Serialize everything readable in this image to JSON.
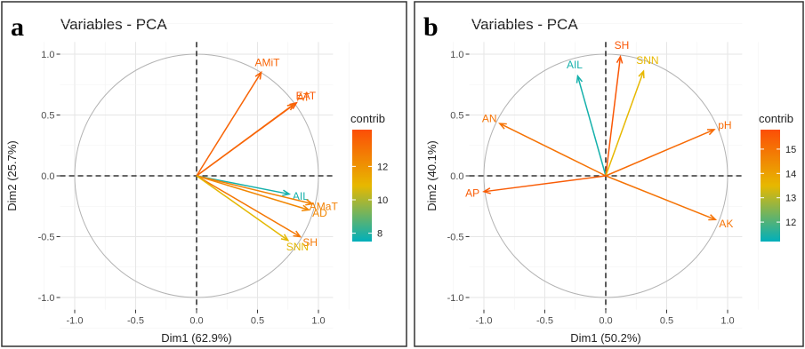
{
  "chart_data": [
    {
      "panel": "a",
      "type": "scatter",
      "title": "Variables - PCA",
      "xlabel": "Dim1 (62.9%)",
      "ylabel": "Dim2 (25.7%)",
      "xlim": [
        -1.0,
        1.0
      ],
      "ylim": [
        -1.0,
        1.0
      ],
      "xticks": [
        "-1.0",
        "-0.5",
        "0.0",
        "0.5",
        "1.0"
      ],
      "yticks": [
        "-1.0",
        "-0.5",
        "0.0",
        "0.5",
        "1.0"
      ],
      "legend": {
        "title": "contrib",
        "placement": "right",
        "ticks": [
          "8",
          "10",
          "12"
        ],
        "range": [
          7.5,
          14.2
        ],
        "colors": [
          "#00AFBB",
          "#E7B800",
          "#FC4E07"
        ]
      },
      "vectors": [
        {
          "name": "AMiT",
          "x": 0.53,
          "y": 0.85,
          "contrib": 13.5
        },
        {
          "name": "EAT",
          "x": 0.82,
          "y": 0.6,
          "contrib": 13.9
        },
        {
          "name": "AT",
          "x": 0.8,
          "y": 0.59,
          "contrib": 13.4
        },
        {
          "name": "AIL",
          "x": 0.76,
          "y": -0.15,
          "contrib": 7.8
        },
        {
          "name": "AMaT",
          "x": 0.95,
          "y": -0.23,
          "contrib": 12.6
        },
        {
          "name": "AD",
          "x": 0.92,
          "y": -0.28,
          "contrib": 12.4
        },
        {
          "name": "SH",
          "x": 0.85,
          "y": -0.5,
          "contrib": 12.9
        },
        {
          "name": "SNN",
          "x": 0.75,
          "y": -0.53,
          "contrib": 10.8
        }
      ]
    },
    {
      "panel": "b",
      "type": "scatter",
      "title": "Variables - PCA",
      "xlabel": "Dim1 (50.2%)",
      "ylabel": "Dim2 (40.1%)",
      "xlim": [
        -1.0,
        1.0
      ],
      "ylim": [
        -1.0,
        1.0
      ],
      "xticks": [
        "-1.0",
        "-0.5",
        "0.0",
        "0.5",
        "1.0"
      ],
      "yticks": [
        "-1.0",
        "-0.5",
        "0.0",
        "0.5",
        "1.0"
      ],
      "legend": {
        "title": "contrib",
        "placement": "right",
        "ticks": [
          "12",
          "13",
          "14",
          "15"
        ],
        "range": [
          11.2,
          15.8
        ],
        "colors": [
          "#00AFBB",
          "#E7B800",
          "#FC4E07"
        ]
      },
      "vectors": [
        {
          "name": "AIL",
          "x": -0.23,
          "y": 0.82,
          "contrib": 11.4
        },
        {
          "name": "SH",
          "x": 0.12,
          "y": 0.98,
          "contrib": 15.6
        },
        {
          "name": "SNN",
          "x": 0.31,
          "y": 0.86,
          "contrib": 13.5
        },
        {
          "name": "AN",
          "x": -0.87,
          "y": 0.43,
          "contrib": 15.0
        },
        {
          "name": "pH",
          "x": 0.89,
          "y": 0.38,
          "contrib": 15.2
        },
        {
          "name": "AP",
          "x": -1.0,
          "y": -0.13,
          "contrib": 15.5
        },
        {
          "name": "AK",
          "x": 0.9,
          "y": -0.36,
          "contrib": 15.0
        }
      ]
    }
  ]
}
